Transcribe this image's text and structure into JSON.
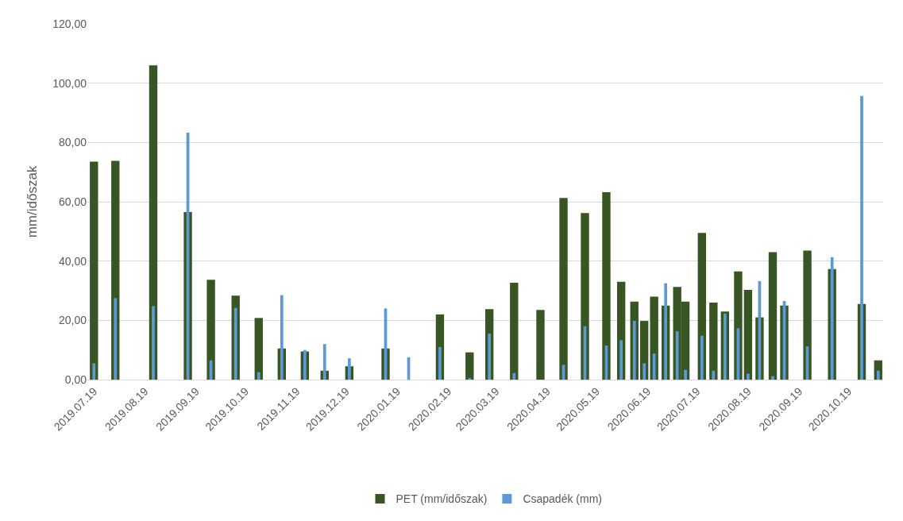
{
  "chart_data": {
    "type": "bar",
    "ylabel": "mm/időszak",
    "x": [
      "2019-07-19",
      "2019-08-01",
      "2019-08-24",
      "2019-09-14",
      "2019-09-28",
      "2019-10-13",
      "2019-10-27",
      "2019-11-10",
      "2019-11-24",
      "2019-12-06",
      "2019-12-21",
      "2020-01-12",
      "2020-01-26",
      "2020-02-14",
      "2020-03-03",
      "2020-03-15",
      "2020-03-30",
      "2020-04-15",
      "2020-04-29",
      "2020-05-12",
      "2020-05-25",
      "2020-06-03",
      "2020-06-11",
      "2020-06-17",
      "2020-06-23",
      "2020-06-30",
      "2020-07-07",
      "2020-07-12",
      "2020-07-22",
      "2020-07-29",
      "2020-08-05",
      "2020-08-13",
      "2020-08-19",
      "2020-08-26",
      "2020-09-03",
      "2020-09-10",
      "2020-09-24",
      "2020-10-09",
      "2020-10-27",
      "2020-11-06"
    ],
    "series": [
      {
        "name": "PET (mm/időszak)",
        "color": "#375623",
        "values": [
          73.5,
          73.8,
          106,
          56.5,
          33.7,
          28.3,
          20.8,
          10.5,
          9.5,
          3,
          4.5,
          10.5,
          0,
          22,
          9.2,
          23.8,
          32.7,
          23.5,
          61.3,
          56.2,
          63.2,
          33,
          26.3,
          19.8,
          28,
          25,
          31.3,
          26.3,
          49.5,
          26,
          23,
          36.5,
          30.3,
          21,
          43,
          25,
          43.5,
          37.3,
          25.5,
          6.5
        ]
      },
      {
        "name": "Csapadék (mm)",
        "color": "#5b9bd5",
        "values": [
          5.5,
          27.5,
          24.8,
          83.3,
          6.5,
          24.2,
          2.5,
          28.5,
          10,
          12,
          7.2,
          24,
          7.5,
          11,
          0.5,
          15.5,
          2.2,
          0,
          5,
          18,
          11.5,
          13.3,
          19.8,
          5.5,
          8.8,
          32.5,
          16.3,
          3.3,
          14.8,
          3,
          22.3,
          17.3,
          2,
          33.2,
          1.2,
          26.5,
          11.2,
          41.3,
          95.7,
          3
        ]
      }
    ],
    "xlim": [
      "2019-07-15",
      "2020-11-09"
    ],
    "xticks": [
      {
        "value": "2019-07-19",
        "label": "2019.07.19"
      },
      {
        "value": "2019-08-19",
        "label": "2019.08.19"
      },
      {
        "value": "2019-09-19",
        "label": "2019.09.19"
      },
      {
        "value": "2019-10-19",
        "label": "2019.10.19"
      },
      {
        "value": "2019-11-19",
        "label": "2019.11.19"
      },
      {
        "value": "2019-12-19",
        "label": "2019.12.19"
      },
      {
        "value": "2020-01-19",
        "label": "2020.01.19"
      },
      {
        "value": "2020-02-19",
        "label": "2020.02.19"
      },
      {
        "value": "2020-03-19",
        "label": "2020.03.19"
      },
      {
        "value": "2020-04-19",
        "label": "2020.04.19"
      },
      {
        "value": "2020-05-19",
        "label": "2020.05.19"
      },
      {
        "value": "2020-06-19",
        "label": "2020.06.19"
      },
      {
        "value": "2020-07-19",
        "label": "2020.07.19"
      },
      {
        "value": "2020-08-19",
        "label": "2020.08.19"
      },
      {
        "value": "2020-09-19",
        "label": "2020.09.19"
      },
      {
        "value": "2020-10-19",
        "label": "2020.10.19"
      }
    ],
    "ylim": [
      0,
      120
    ],
    "yticks": [
      {
        "value": 0,
        "label": "0,00"
      },
      {
        "value": 20,
        "label": "20,00"
      },
      {
        "value": 40,
        "label": "40,00"
      },
      {
        "value": 60,
        "label": "60,00"
      },
      {
        "value": 80,
        "label": "80,00"
      },
      {
        "value": 100,
        "label": "100,00"
      },
      {
        "value": 120,
        "label": "120,00"
      }
    ],
    "grid": "y",
    "legend": "bottom"
  }
}
